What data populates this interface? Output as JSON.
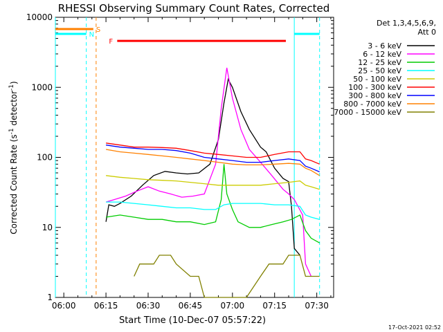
{
  "chart_data": {
    "type": "line",
    "title": "RHESSI Observing Summary Count Rates, Corrected",
    "xlabel": "Start Time (10-Dec-07 05:57:22)",
    "ylabel_main": "Corrected Count Rate (s",
    "ylabel_sup1": "-1",
    "ylabel_mid": " detector",
    "ylabel_sup2": "-1",
    "ylabel_end": ")",
    "ylog": true,
    "ylim": [
      1,
      10000
    ],
    "xlim_minutes": [
      -3,
      96
    ],
    "x_ticks": [
      {
        "label": "06:00",
        "t": 0
      },
      {
        "label": "06:15",
        "t": 15
      },
      {
        "label": "06:30",
        "t": 30
      },
      {
        "label": "06:45",
        "t": 45
      },
      {
        "label": "07:00",
        "t": 60
      },
      {
        "label": "07:15",
        "t": 75
      },
      {
        "label": "07:30",
        "t": 90
      }
    ],
    "y_ticks": [
      {
        "label": "1",
        "v": 1
      },
      {
        "label": "10",
        "v": 10
      },
      {
        "label": "100",
        "v": 100
      },
      {
        "label": "1000",
        "v": 1000
      },
      {
        "label": "10000",
        "v": 10000
      }
    ],
    "legend": {
      "header1": "Det 1,3,4,5,6,9,",
      "header2": "Att 0",
      "placement": "right"
    },
    "series": [
      {
        "name": "3 - 6 keV",
        "color": "#000000",
        "points": [
          [
            15,
            12
          ],
          [
            16,
            21
          ],
          [
            18,
            20
          ],
          [
            20,
            22
          ],
          [
            24,
            28
          ],
          [
            28,
            40
          ],
          [
            32,
            55
          ],
          [
            36,
            63
          ],
          [
            40,
            60
          ],
          [
            44,
            58
          ],
          [
            48,
            60
          ],
          [
            52,
            80
          ],
          [
            55,
            180
          ],
          [
            57,
            600
          ],
          [
            58.5,
            1300
          ],
          [
            60,
            1000
          ],
          [
            63,
            450
          ],
          [
            66,
            250
          ],
          [
            70,
            140
          ],
          [
            72,
            120
          ],
          [
            75,
            70
          ],
          [
            78,
            50
          ],
          [
            80,
            45
          ],
          [
            81,
            20
          ],
          [
            82,
            5
          ],
          [
            84,
            4
          ]
        ]
      },
      {
        "name": "6 - 12 keV",
        "color": "#ff00ff",
        "points": [
          [
            15,
            23
          ],
          [
            18,
            25
          ],
          [
            22,
            28
          ],
          [
            26,
            33
          ],
          [
            30,
            38
          ],
          [
            34,
            33
          ],
          [
            38,
            30
          ],
          [
            42,
            27
          ],
          [
            46,
            28
          ],
          [
            50,
            30
          ],
          [
            54,
            80
          ],
          [
            56,
            500
          ],
          [
            58,
            1900
          ],
          [
            60,
            700
          ],
          [
            63,
            250
          ],
          [
            66,
            130
          ],
          [
            70,
            85
          ],
          [
            74,
            55
          ],
          [
            78,
            35
          ],
          [
            80,
            30
          ],
          [
            82,
            25
          ],
          [
            85,
            15
          ],
          [
            86,
            3
          ],
          [
            88,
            2
          ]
        ]
      },
      {
        "name": "12 - 25 keV",
        "color": "#00cc00",
        "points": [
          [
            15,
            14
          ],
          [
            20,
            15
          ],
          [
            25,
            14
          ],
          [
            30,
            13
          ],
          [
            35,
            13
          ],
          [
            40,
            12
          ],
          [
            45,
            12
          ],
          [
            50,
            11
          ],
          [
            54,
            12
          ],
          [
            56,
            25
          ],
          [
            57,
            80
          ],
          [
            58,
            30
          ],
          [
            60,
            18
          ],
          [
            62,
            12
          ],
          [
            66,
            10
          ],
          [
            70,
            10
          ],
          [
            74,
            11
          ],
          [
            78,
            12
          ],
          [
            81,
            13
          ],
          [
            84,
            15
          ],
          [
            86,
            9
          ],
          [
            88,
            7
          ],
          [
            91,
            6
          ]
        ]
      },
      {
        "name": "25 - 50 keV",
        "color": "#00ffff",
        "points": [
          [
            15,
            23
          ],
          [
            20,
            23
          ],
          [
            25,
            22
          ],
          [
            30,
            21
          ],
          [
            35,
            20
          ],
          [
            40,
            19
          ],
          [
            45,
            19
          ],
          [
            50,
            18
          ],
          [
            54,
            18
          ],
          [
            57,
            21
          ],
          [
            60,
            22
          ],
          [
            65,
            22
          ],
          [
            70,
            22
          ],
          [
            75,
            21
          ],
          [
            80,
            21
          ],
          [
            84,
            20
          ],
          [
            86,
            15
          ],
          [
            88,
            14
          ],
          [
            91,
            13
          ]
        ]
      },
      {
        "name": "50 - 100 keV",
        "color": "#cccc00",
        "points": [
          [
            15,
            55
          ],
          [
            20,
            52
          ],
          [
            25,
            50
          ],
          [
            30,
            48
          ],
          [
            35,
            47
          ],
          [
            40,
            46
          ],
          [
            45,
            44
          ],
          [
            50,
            42
          ],
          [
            55,
            40
          ],
          [
            60,
            40
          ],
          [
            65,
            40
          ],
          [
            70,
            40
          ],
          [
            75,
            42
          ],
          [
            80,
            44
          ],
          [
            84,
            46
          ],
          [
            86,
            40
          ],
          [
            88,
            38
          ],
          [
            91,
            35
          ]
        ]
      },
      {
        "name": "100 - 300 keV",
        "color": "#ff0000",
        "points": [
          [
            15,
            160
          ],
          [
            20,
            150
          ],
          [
            25,
            140
          ],
          [
            30,
            140
          ],
          [
            35,
            138
          ],
          [
            40,
            135
          ],
          [
            45,
            125
          ],
          [
            50,
            115
          ],
          [
            55,
            110
          ],
          [
            60,
            105
          ],
          [
            65,
            100
          ],
          [
            70,
            100
          ],
          [
            75,
            110
          ],
          [
            80,
            120
          ],
          [
            84,
            120
          ],
          [
            86,
            95
          ],
          [
            88,
            90
          ],
          [
            91,
            80
          ]
        ]
      },
      {
        "name": "300 - 800 keV",
        "color": "#0000ff",
        "points": [
          [
            15,
            150
          ],
          [
            20,
            140
          ],
          [
            25,
            135
          ],
          [
            30,
            130
          ],
          [
            35,
            130
          ],
          [
            40,
            125
          ],
          [
            45,
            115
          ],
          [
            50,
            100
          ],
          [
            55,
            95
          ],
          [
            60,
            90
          ],
          [
            65,
            85
          ],
          [
            70,
            85
          ],
          [
            75,
            90
          ],
          [
            80,
            95
          ],
          [
            84,
            90
          ],
          [
            86,
            75
          ],
          [
            88,
            70
          ],
          [
            91,
            62
          ]
        ]
      },
      {
        "name": "800 - 7000 keV",
        "color": "#ff8000",
        "points": [
          [
            15,
            130
          ],
          [
            20,
            120
          ],
          [
            25,
            115
          ],
          [
            30,
            110
          ],
          [
            35,
            105
          ],
          [
            40,
            100
          ],
          [
            45,
            95
          ],
          [
            50,
            90
          ],
          [
            55,
            85
          ],
          [
            60,
            80
          ],
          [
            65,
            78
          ],
          [
            70,
            78
          ],
          [
            75,
            80
          ],
          [
            80,
            82
          ],
          [
            84,
            80
          ],
          [
            86,
            70
          ],
          [
            88,
            65
          ],
          [
            91,
            55
          ]
        ]
      },
      {
        "name": "7000 - 15000 keV",
        "color": "#808000",
        "points": [
          [
            25,
            2
          ],
          [
            27,
            3
          ],
          [
            32,
            3
          ],
          [
            34,
            4
          ],
          [
            38,
            4
          ],
          [
            40,
            3
          ],
          [
            45,
            2
          ],
          [
            48,
            2
          ],
          [
            50,
            1
          ],
          [
            60,
            1
          ],
          [
            65,
            1
          ],
          [
            70,
            2
          ],
          [
            73,
            3
          ],
          [
            76,
            3
          ],
          [
            78,
            3
          ],
          [
            80,
            4
          ],
          [
            84,
            4
          ],
          [
            86,
            2
          ],
          [
            88,
            2
          ],
          [
            91,
            2
          ]
        ]
      }
    ],
    "flags": [
      {
        "label": "S",
        "color": "#ff8000",
        "t0": -3,
        "t1": 10.5,
        "v": 6800
      },
      {
        "label": "N",
        "color": "#00ffff",
        "t0": -3,
        "t1": 8,
        "v": 5800
      },
      {
        "label": "F",
        "color": "#ff0000",
        "t0": 19,
        "t1": 79,
        "v": 4600
      }
    ],
    "night_segments": [
      {
        "color": "#00ffff",
        "t0": 82,
        "t1": 91,
        "v": 5800
      }
    ],
    "vlines": [
      {
        "color": "#00ffff",
        "t": -3,
        "style": "solid"
      },
      {
        "color": "#00ffff",
        "t": 8,
        "style": "dashed"
      },
      {
        "color": "#ff8000",
        "t": 11.5,
        "style": "dashed"
      },
      {
        "color": "#00ffff",
        "t": 82,
        "style": "solid"
      },
      {
        "color": "#00ffff",
        "t": 91,
        "style": "dashed"
      }
    ]
  },
  "footer": {
    "timestamp": "17-Oct-2021 02:52"
  }
}
